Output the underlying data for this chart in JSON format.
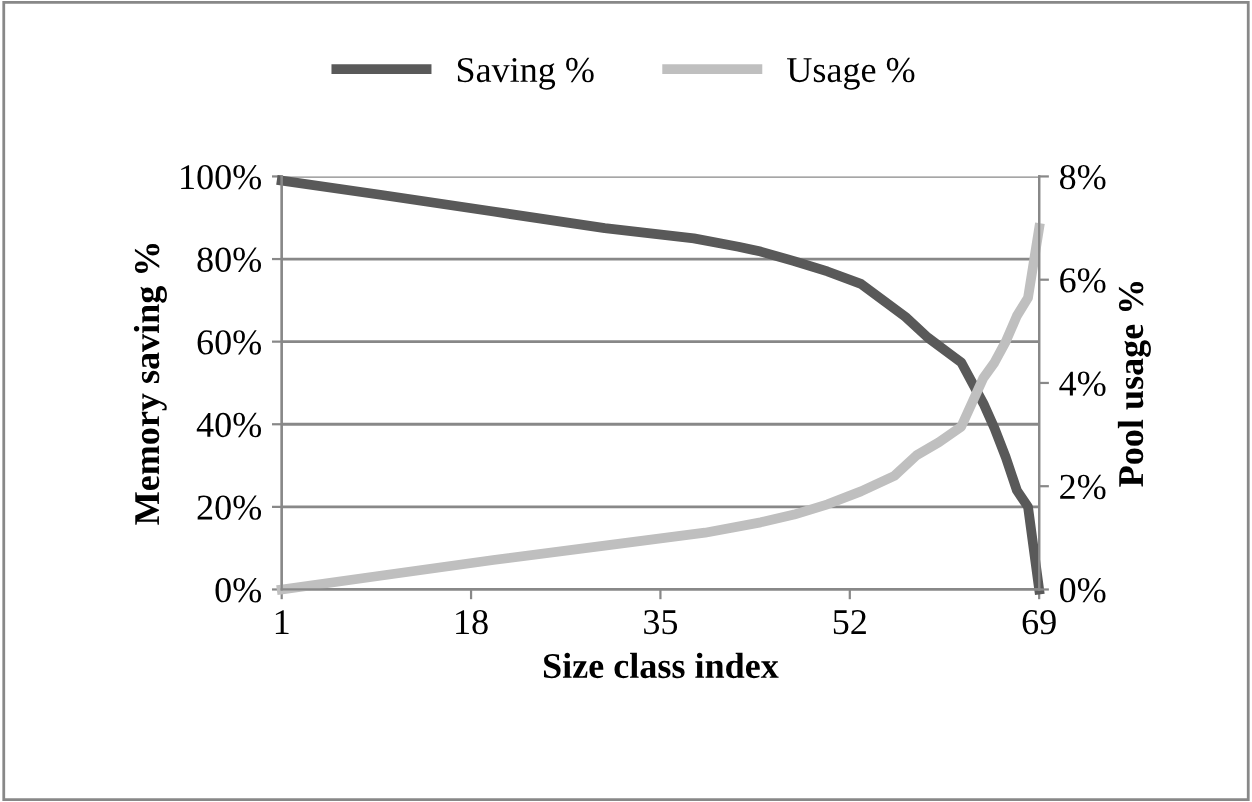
{
  "chart_data": {
    "type": "line",
    "xlabel": "Size class index",
    "ylabel": "Memory saving %",
    "y2label": "Pool usage %",
    "xlim": [
      1,
      69
    ],
    "xticks": [
      1,
      18,
      35,
      52,
      69
    ],
    "ylim": [
      0,
      100
    ],
    "yticks": [
      {
        "value": 0,
        "label": "0%"
      },
      {
        "value": 20,
        "label": "20%"
      },
      {
        "value": 40,
        "label": "40%"
      },
      {
        "value": 60,
        "label": "60%"
      },
      {
        "value": 80,
        "label": "80%"
      },
      {
        "value": 100,
        "label": "100%"
      }
    ],
    "y2lim": [
      0,
      8
    ],
    "y2ticks": [
      {
        "value": 0,
        "label": "0%"
      },
      {
        "value": 2,
        "label": "2%"
      },
      {
        "value": 4,
        "label": "4%"
      },
      {
        "value": 6,
        "label": "6%"
      },
      {
        "value": 8,
        "label": "8%"
      }
    ],
    "grid": "y",
    "legend": "top",
    "marker": "none",
    "line_style": "solid",
    "series": [
      {
        "name": "Saving %",
        "color": "#595959",
        "x": [
          1,
          10,
          20,
          30,
          38,
          42,
          44,
          47,
          50,
          53,
          55,
          57,
          59,
          61,
          62,
          64,
          65,
          66,
          67,
          68,
          69
        ],
        "values": [
          99,
          95.5,
          91.5,
          87.5,
          85,
          83,
          81.8,
          79.5,
          77,
          74,
          70,
          66,
          61,
          57,
          55,
          45,
          39,
          32,
          24,
          20,
          0
        ]
      },
      {
        "name": "Usage %",
        "color": "#bfbfbf",
        "axis": "y2",
        "x": [
          1,
          10,
          20,
          30,
          39,
          44,
          47,
          50,
          53,
          56,
          58,
          60,
          62,
          64,
          65,
          66,
          67,
          68,
          69
        ],
        "values": [
          0,
          0.27,
          0.57,
          0.85,
          1.1,
          1.3,
          1.45,
          1.65,
          1.9,
          2.2,
          2.6,
          2.85,
          3.15,
          4.1,
          4.4,
          4.8,
          5.3,
          5.65,
          7.0
        ]
      }
    ]
  }
}
